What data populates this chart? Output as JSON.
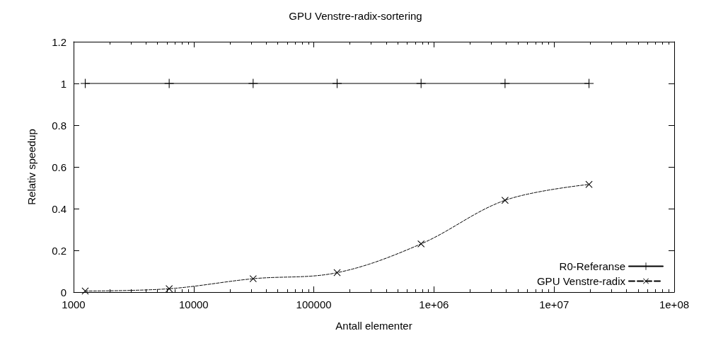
{
  "chart_data": {
    "type": "line",
    "title": "GPU Venstre-radix-sortering",
    "xlabel": "Antall elementer",
    "ylabel": "Relativ speedup",
    "log": "x",
    "xlim": [
      1000,
      100000000
    ],
    "xticks": [
      1000,
      10000,
      100000,
      {
        "value": 1000000,
        "label": "1e+06"
      },
      {
        "value": 10000000,
        "label": "1e+07"
      },
      {
        "value": 100000000,
        "label": "1e+08"
      }
    ],
    "ylim": [
      0,
      1.2
    ],
    "yticks": [
      0,
      0.2,
      0.4,
      0.6,
      0.8,
      1,
      1.2
    ],
    "grid": false,
    "legend": "bottom right",
    "x": [
      1250,
      6250,
      31250,
      156250,
      781250,
      3906250,
      19531250
    ],
    "series": [
      {
        "name": "R0-Referanse",
        "color": "#000000",
        "values": [
          1,
          1,
          1,
          1,
          1,
          1,
          1
        ],
        "marker": "plus",
        "line_style": "solid"
      },
      {
        "name": "GPU Venstre-radix",
        "color": "#000000",
        "values": [
          0.005,
          0.016,
          0.064,
          0.093,
          0.231,
          0.44,
          0.516
        ],
        "marker": "cross",
        "line_style": "dashed"
      }
    ]
  }
}
